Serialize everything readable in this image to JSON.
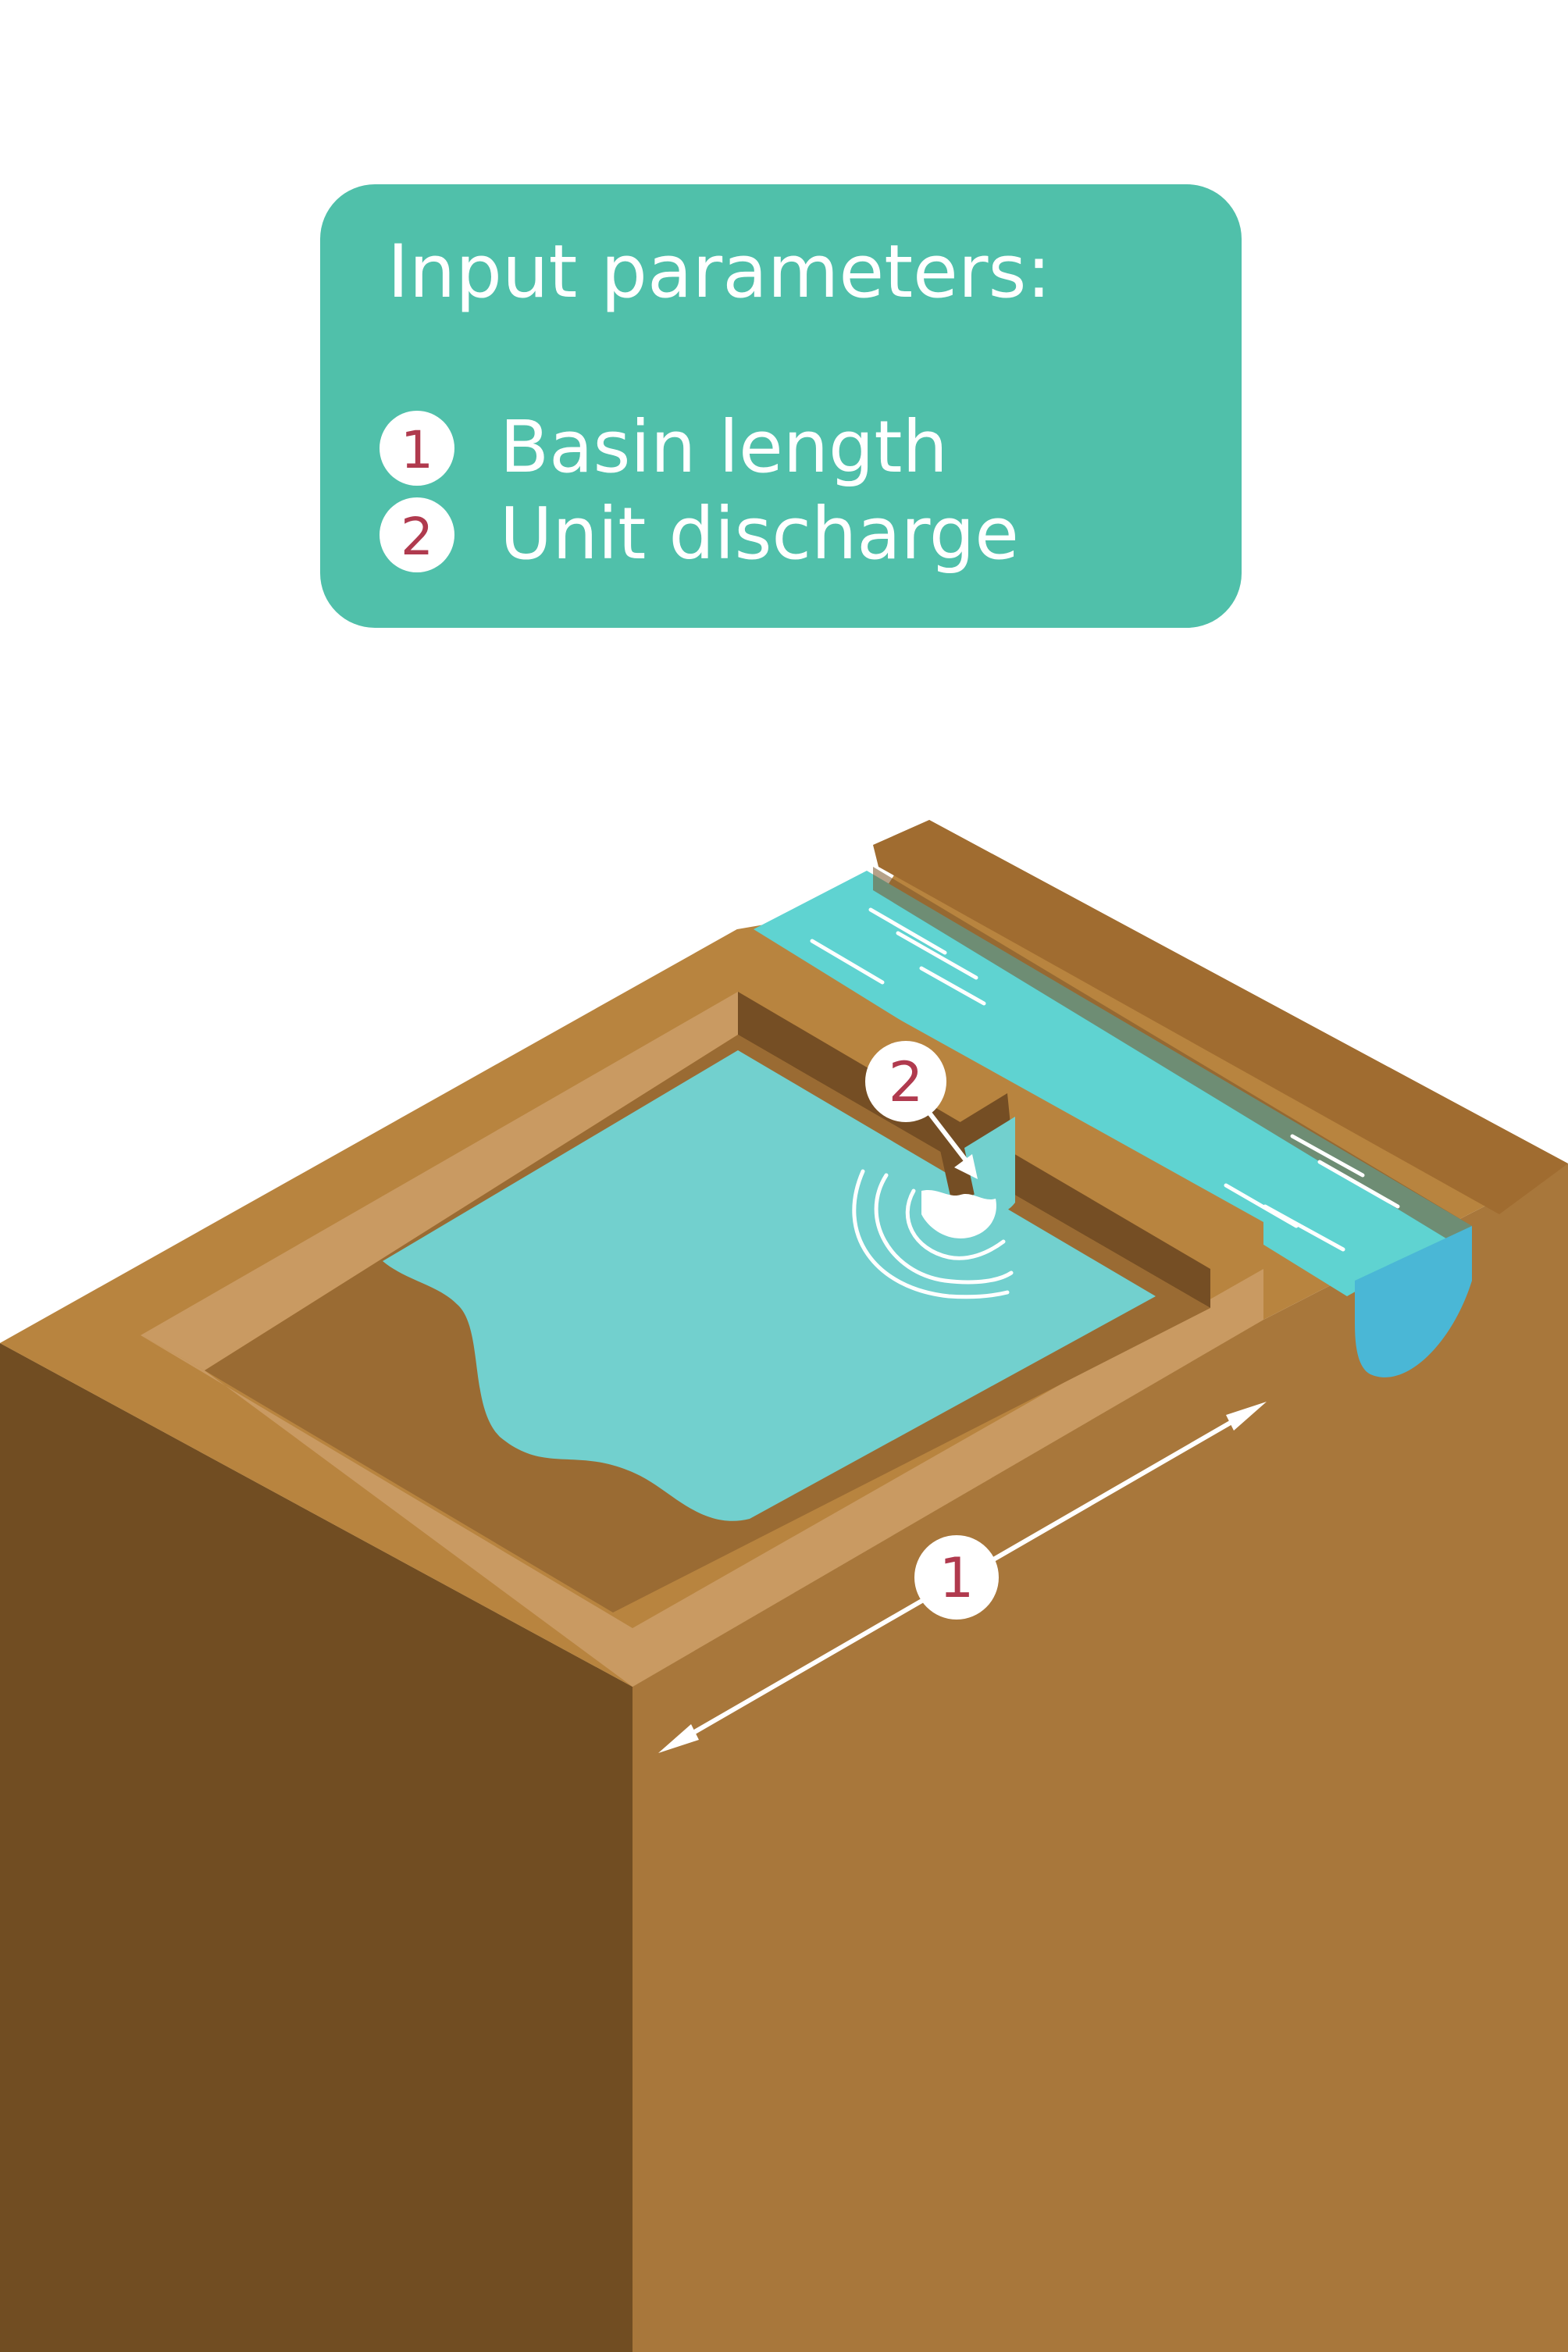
{
  "legend": {
    "title": "Input parameters:",
    "items": [
      {
        "number": "1",
        "label": "Basin length"
      },
      {
        "number": "2",
        "label": "Unit discharge"
      }
    ]
  },
  "markers": {
    "basin_length": "1",
    "unit_discharge": "2"
  },
  "colors": {
    "legend_bg": "#50C0AA",
    "marker_number": "#B03A4E",
    "soil_top": "#B8843F",
    "soil_left": "#714D22",
    "soil_right": "#A8773B",
    "rim_highlight": "#C99A62",
    "basin_floor": "#9A6B33",
    "basin_water": "#72D0CE",
    "channel_water": "#5FD3D1",
    "outfall_water": "#4AB7D6"
  }
}
